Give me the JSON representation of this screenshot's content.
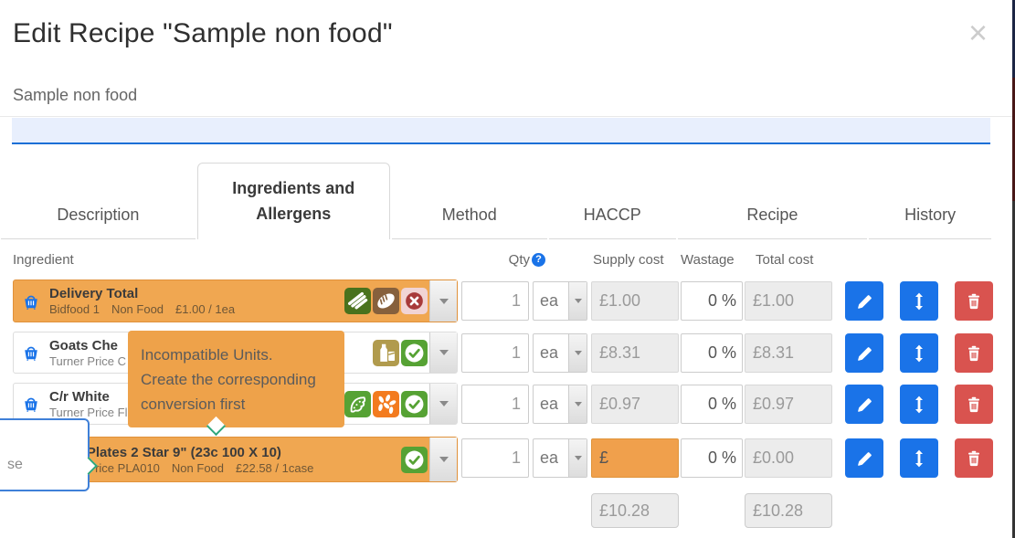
{
  "modal": {
    "title": "Edit Recipe \"Sample non food\"",
    "close_label": "×",
    "recipe_name": "Sample non food",
    "name_input_value": ""
  },
  "tabs": [
    {
      "label": "Description",
      "active": false
    },
    {
      "label": "Ingredients and Allergens",
      "active": true
    },
    {
      "label": "Method",
      "active": false
    },
    {
      "label": "HACCP",
      "active": false
    },
    {
      "label": "Recipe",
      "active": false
    },
    {
      "label": "History",
      "active": false
    }
  ],
  "table": {
    "headers": {
      "ingredient": "Ingredient",
      "qty": "Qty",
      "qty_help": "?",
      "supply": "Supply cost",
      "wastage": "Wastage",
      "total": "Total cost"
    }
  },
  "rows": [
    {
      "name": "Delivery Total",
      "supplier": "Bidfood 1",
      "category": "Non Food",
      "price": "£1.00 / 1ea",
      "qty": "1",
      "unit": "ea",
      "supply": "£1.00",
      "wastage": "0 %",
      "total": "£1.00",
      "highlight": true,
      "supply_error": false,
      "allergens": [
        "celery",
        "gluten",
        "none"
      ]
    },
    {
      "name": "Goats Che",
      "supplier": "Turner Price C",
      "category": "",
      "price": "",
      "qty": "1",
      "unit": "ea",
      "supply": "£8.31",
      "wastage": "0 %",
      "total": "£8.31",
      "highlight": false,
      "supply_error": false,
      "allergens": [
        "milk",
        "check"
      ]
    },
    {
      "name": "C/r White",
      "supplier": "Turner Price Fl",
      "category": "",
      "price": "",
      "qty": "1",
      "unit": "ea",
      "supply": "£0.97",
      "wastage": "0 %",
      "total": "£0.97",
      "highlight": false,
      "supply_error": false,
      "allergens": [
        "soya",
        "sesame",
        "check"
      ]
    },
    {
      "name": "Econ Plates 2 Star 9\" (23c 100 X 10)",
      "supplier": "Turner Price PLA010",
      "category": "Non Food",
      "price": "£22.58 / 1case",
      "qty": "1",
      "unit": "ea",
      "supply": "£",
      "wastage": "0 %",
      "total": "£0.00",
      "highlight": true,
      "supply_error": true,
      "allergens": [
        "check"
      ]
    }
  ],
  "totals": {
    "supply": "£10.28",
    "total": "£10.28"
  },
  "tooltip": {
    "line1": "Incompatible Units.",
    "line2": "Create the corresponding",
    "line3": "conversion first"
  },
  "popover": {
    "text": "se"
  },
  "colors": {
    "accent_blue": "#1a73e8",
    "row_highlight": "#f0a751",
    "row_highlight_border": "#e0913a",
    "tooltip_bg": "#eea24a",
    "delete_red": "#d9534f",
    "check_green": "#56a234",
    "celery_green": "#49721d",
    "gluten_brown": "#86603c",
    "milk_khaki": "#b19b4d",
    "sesame_orange": "#f37b1f",
    "no_allergen_bg": "#f1d4d4",
    "no_allergen_fg": "#a83a3a",
    "arrow_teal": "#2fa77c"
  }
}
